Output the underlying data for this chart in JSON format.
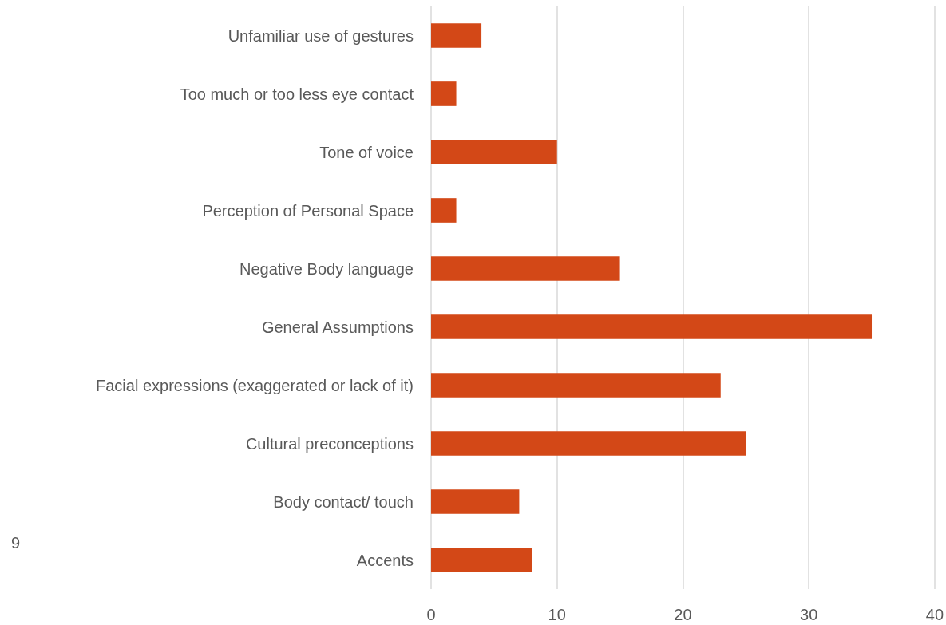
{
  "chart_data": {
    "type": "bar",
    "orientation": "horizontal",
    "categories": [
      "Unfamiliar use of gestures",
      "Too much or too less eye contact",
      "Tone of voice",
      "Perception of Personal Space",
      "Negative Body language",
      "General Assumptions",
      "Facial expressions (exaggerated or lack of it)",
      "Cultural preconceptions",
      "Body contact/ touch",
      "Accents"
    ],
    "values": [
      4,
      2,
      10,
      2,
      15,
      35,
      23,
      25,
      7,
      8
    ],
    "color": "#d34817",
    "xlim": [
      0,
      40
    ],
    "xticks": [
      0,
      10,
      20,
      30,
      40
    ],
    "grid": "x",
    "annotations": [
      "9"
    ]
  }
}
